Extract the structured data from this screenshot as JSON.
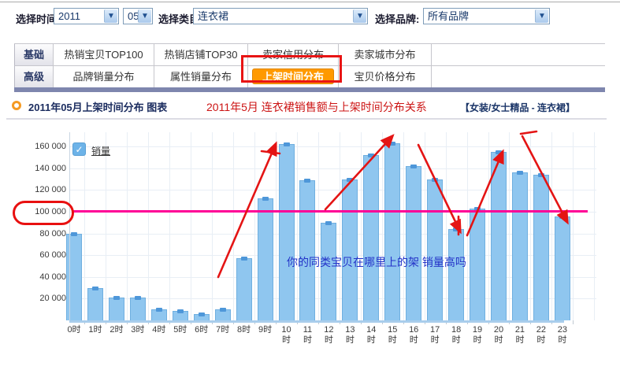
{
  "filters": {
    "time_label": "选择时间:",
    "year": "2011",
    "month": "05",
    "category_label": "选择类目:",
    "category_value": "连衣裙",
    "brand_label": "选择品牌:",
    "brand_value": "所有品牌",
    "dropdown_icon": "chevron-down"
  },
  "tabs": {
    "basic_label": "基础",
    "advanced_label": "高级",
    "basic": [
      "热销宝贝TOP100",
      "热销店铺TOP30",
      "卖家信用分布",
      "卖家城市分布"
    ],
    "advanced": [
      "品牌销量分布",
      "属性销量分布",
      "上架时间分布",
      "宝贝价格分布"
    ],
    "active_tab": "上架时间分布"
  },
  "header": {
    "title": "2011年05月上架时间分布 图表",
    "red_note": "2011年5月 连衣裙销售额与上架时间分布关系",
    "category_path": "【女装/女士精品 - 连衣裙】"
  },
  "chart_data": {
    "type": "bar",
    "title": "2011年05月上架时间分布",
    "legend": [
      "销量"
    ],
    "categories": [
      "0时",
      "1时",
      "2时",
      "3时",
      "4时",
      "5时",
      "6时",
      "7时",
      "8时",
      "9时",
      "10时",
      "11时",
      "12时",
      "13时",
      "14时",
      "15时",
      "16时",
      "17时",
      "18时",
      "19时",
      "20时",
      "21时",
      "22时",
      "23时"
    ],
    "values": [
      80000,
      30000,
      21000,
      21000,
      10000,
      9000,
      6000,
      10000,
      57000,
      112000,
      162000,
      129000,
      90000,
      130000,
      152000,
      163000,
      142000,
      130000,
      84000,
      103000,
      155000,
      136000,
      134000,
      96000
    ],
    "ylim": [
      0,
      175000
    ],
    "yticks": [
      20000,
      40000,
      60000,
      80000,
      100000,
      120000,
      140000,
      160000
    ],
    "grid": true,
    "legend_position": "top-left",
    "reference_line": {
      "value": 100000,
      "label": "100 000"
    },
    "annotation": "你的同类宝贝在哪里上的架 销量高吗"
  },
  "colors": {
    "bar_fill": "#8fc6ef",
    "bar_border": "#6fafe0",
    "bar_cap": "#4e97d9",
    "reference_line": "#ff0096",
    "annotation_red": "#e41414",
    "annotation_blue": "#2433c8",
    "active_tab_bg": "#ff9900",
    "tab_bottom_bar": "#7e86ae"
  }
}
